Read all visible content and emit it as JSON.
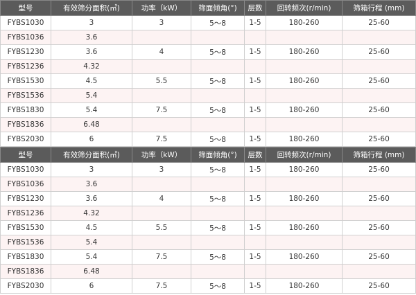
{
  "headers": [
    "型号",
    "有效筛分面积(㎡)",
    "功率（kW）",
    "筛面倾角(°)",
    "层数",
    "回转频次(r/min)",
    "筛箱行程 (mm)"
  ],
  "tables": [
    {
      "rows": [
        [
          "FYBS1030",
          "3",
          "3",
          "5～8",
          "1-5",
          "180-260",
          "25-60"
        ],
        [
          "FYBS1036",
          "3.6",
          "",
          "",
          "",
          "",
          ""
        ],
        [
          "FYBS1230",
          "3.6",
          "4",
          "5～8",
          "1-5",
          "180-260",
          "25-60"
        ],
        [
          "FYBS1236",
          "4.32",
          "",
          "",
          "",
          "",
          ""
        ],
        [
          "FYBS1530",
          "4.5",
          "5.5",
          "5～8",
          "1-5",
          "180-260",
          "25-60"
        ],
        [
          "FYBS1536",
          "5.4",
          "",
          "",
          "",
          "",
          ""
        ],
        [
          "FYBS1830",
          "5.4",
          "7.5",
          "5～8",
          "1-5",
          "180-260",
          "25-60"
        ],
        [
          "FYBS1836",
          "6.48",
          "",
          "",
          "",
          "",
          ""
        ],
        [
          "FYBS2030",
          "6",
          "7.5",
          "5～8",
          "1-5",
          "180-260",
          "25-60"
        ]
      ]
    },
    {
      "rows": [
        [
          "FYBS1030",
          "3",
          "3",
          "5～8",
          "1-5",
          "180-260",
          "25-60"
        ],
        [
          "FYBS1036",
          "3.6",
          "",
          "",
          "",
          "",
          ""
        ],
        [
          "FYBS1230",
          "3.6",
          "4",
          "5～8",
          "1-5",
          "180-260",
          "25-60"
        ],
        [
          "FYBS1236",
          "4.32",
          "",
          "",
          "",
          "",
          ""
        ],
        [
          "FYBS1530",
          "4.5",
          "5.5",
          "5～8",
          "1-5",
          "180-260",
          "25-60"
        ],
        [
          "FYBS1536",
          "5.4",
          "",
          "",
          "",
          "",
          ""
        ],
        [
          "FYBS1830",
          "5.4",
          "7.5",
          "5～8",
          "1-5",
          "180-260",
          "25-60"
        ],
        [
          "FYBS1836",
          "6.48",
          "",
          "",
          "",
          "",
          ""
        ],
        [
          "FYBS2030",
          "6",
          "7.5",
          "5～8",
          "1-5",
          "180-260",
          "25-60"
        ]
      ]
    }
  ],
  "colors": {
    "header_bg": "#5b5b5b",
    "header_text": "#ffffff",
    "row_alt": "#fdf3f3",
    "border": "#cfcfcf"
  }
}
